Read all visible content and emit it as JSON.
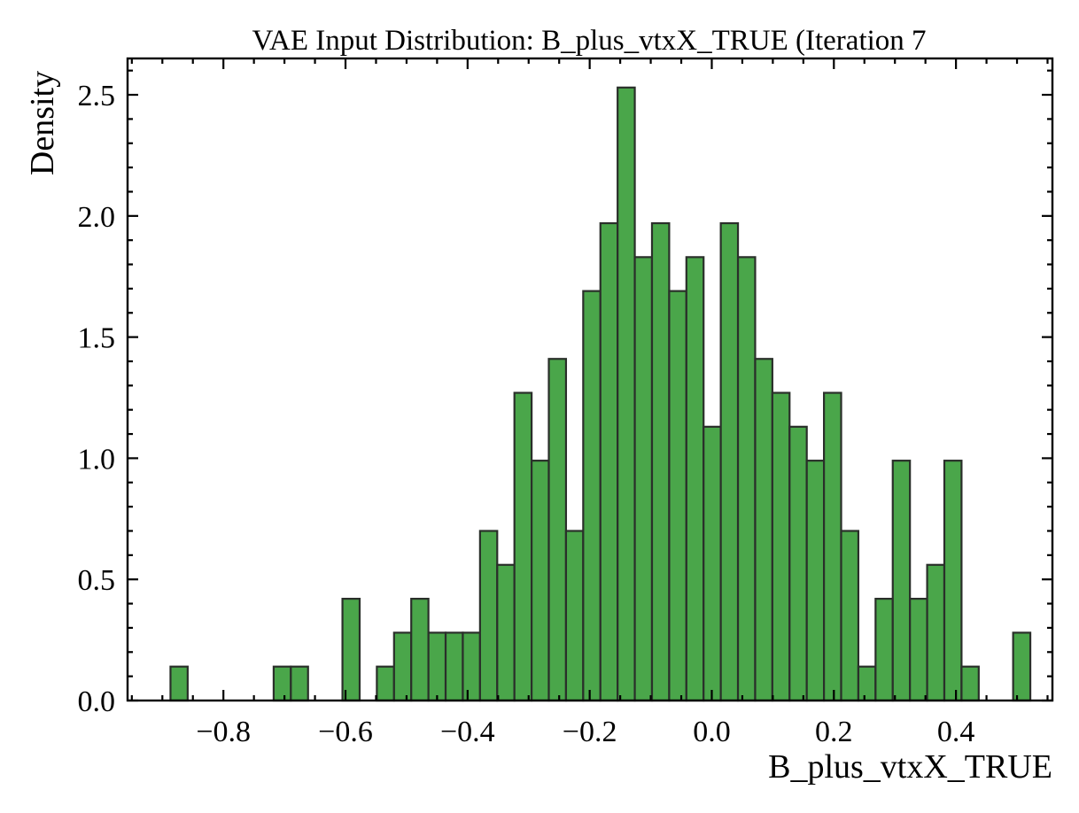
{
  "chart_data": {
    "type": "bar",
    "title": "VAE Input Distribution: B_plus_vtxX_TRUE (Iteration 7",
    "xlabel": "B_plus_vtxX_TRUE",
    "ylabel": "Density",
    "xlim": [
      -0.957,
      0.558
    ],
    "ylim": [
      0.0,
      2.65
    ],
    "x_ticks": [
      -0.8,
      -0.6,
      -0.4,
      -0.2,
      0.0,
      0.2,
      0.4
    ],
    "x_tick_labels": [
      "−0.8",
      "−0.6",
      "−0.4",
      "−0.2",
      "0.0",
      "0.2",
      "0.4"
    ],
    "y_ticks": [
      0.0,
      0.5,
      1.0,
      1.5,
      2.0,
      2.5
    ],
    "y_tick_labels": [
      "0.0",
      "0.5",
      "1.0",
      "1.5",
      "2.0",
      "2.5"
    ],
    "grid": false,
    "bar_color": "#4aa64a",
    "edge_color": "#2a2f2a",
    "bins": {
      "start": -0.8867,
      "width": 0.02817,
      "values": [
        0.14,
        0.0,
        0.0,
        0.0,
        0.0,
        0.0,
        0.14,
        0.14,
        0.0,
        0.0,
        0.42,
        0.0,
        0.14,
        0.28,
        0.42,
        0.28,
        0.28,
        0.28,
        0.7,
        0.56,
        1.27,
        0.99,
        1.41,
        0.7,
        1.69,
        1.97,
        2.53,
        1.83,
        1.97,
        1.69,
        1.83,
        1.13,
        1.97,
        1.83,
        1.41,
        1.27,
        1.13,
        0.99,
        1.27,
        0.7,
        0.14,
        0.42,
        0.99,
        0.42,
        0.56,
        0.99,
        0.14,
        0.0,
        0.0,
        0.28
      ]
    }
  }
}
